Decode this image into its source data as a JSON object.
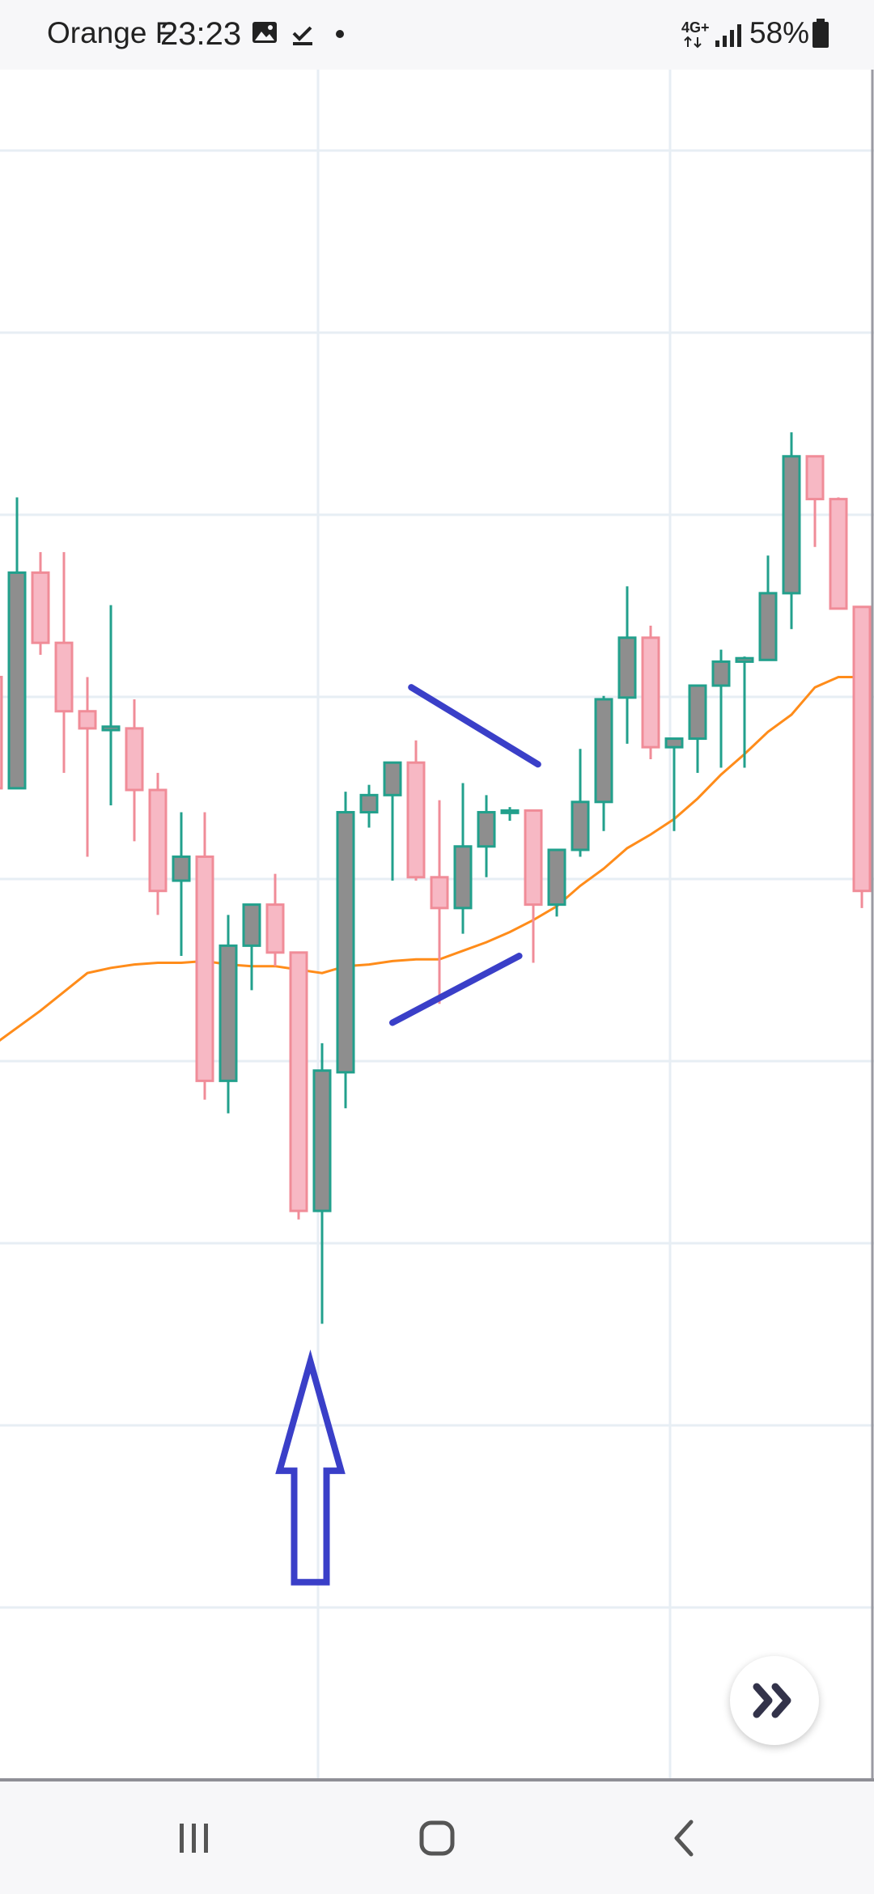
{
  "status_bar": {
    "carrier": "Orange F",
    "time": "23:23",
    "network": "4G+",
    "battery": "58%",
    "icons": [
      "gallery-icon",
      "download-done-icon",
      "dot-icon",
      "network-4g-icon",
      "signal-icon",
      "battery-icon"
    ]
  },
  "chart_data": {
    "type": "candlestick",
    "title": "",
    "xlabel": "",
    "ylabel": "",
    "price_units": "relative price (no axis labels visible)",
    "ylim": [
      0,
      100
    ],
    "grid": true,
    "up_color": "#22a08c",
    "down_color": "#f08c98",
    "up_body_color": "#8e8e8e",
    "down_body_color": "#f7b8c4",
    "ma_color": "#ff8c1a",
    "candles": [
      {
        "o": 64.5,
        "h": 64.5,
        "l": 58.0,
        "c": 58.0
      },
      {
        "o": 58.0,
        "h": 75.0,
        "l": 58.0,
        "c": 70.6
      },
      {
        "o": 70.6,
        "h": 71.8,
        "l": 65.8,
        "c": 66.5
      },
      {
        "o": 66.5,
        "h": 71.8,
        "l": 58.9,
        "c": 62.5
      },
      {
        "o": 62.5,
        "h": 64.5,
        "l": 54.0,
        "c": 61.5
      },
      {
        "o": 61.4,
        "h": 68.7,
        "l": 57.0,
        "c": 61.6
      },
      {
        "o": 61.5,
        "h": 63.2,
        "l": 54.9,
        "c": 57.9
      },
      {
        "o": 57.9,
        "h": 58.9,
        "l": 50.6,
        "c": 52.0
      },
      {
        "o": 52.6,
        "h": 56.6,
        "l": 48.2,
        "c": 54.0
      },
      {
        "o": 54.0,
        "h": 56.6,
        "l": 39.8,
        "c": 40.9
      },
      {
        "o": 40.9,
        "h": 50.6,
        "l": 39.0,
        "c": 48.8
      },
      {
        "o": 48.8,
        "h": 51.2,
        "l": 46.2,
        "c": 51.2
      },
      {
        "o": 51.2,
        "h": 53.0,
        "l": 47.6,
        "c": 48.4
      },
      {
        "o": 48.4,
        "h": 48.4,
        "l": 32.8,
        "c": 33.3
      },
      {
        "o": 33.3,
        "h": 43.1,
        "l": 26.7,
        "c": 41.5
      },
      {
        "o": 41.4,
        "h": 57.8,
        "l": 39.3,
        "c": 56.6
      },
      {
        "o": 56.6,
        "h": 58.2,
        "l": 55.7,
        "c": 57.6
      },
      {
        "o": 57.6,
        "h": 59.5,
        "l": 52.6,
        "c": 59.5
      },
      {
        "o": 59.5,
        "h": 60.8,
        "l": 52.6,
        "c": 52.8
      },
      {
        "o": 52.8,
        "h": 57.3,
        "l": 45.4,
        "c": 51.0
      },
      {
        "o": 51.0,
        "h": 58.3,
        "l": 49.5,
        "c": 54.6
      },
      {
        "o": 54.6,
        "h": 57.6,
        "l": 52.8,
        "c": 56.6
      },
      {
        "o": 56.6,
        "h": 56.9,
        "l": 56.1,
        "c": 56.7
      },
      {
        "o": 56.7,
        "h": 56.7,
        "l": 47.8,
        "c": 51.2
      },
      {
        "o": 51.2,
        "h": 54.4,
        "l": 50.5,
        "c": 54.4
      },
      {
        "o": 54.4,
        "h": 60.3,
        "l": 54.0,
        "c": 57.2
      },
      {
        "o": 57.2,
        "h": 63.4,
        "l": 55.5,
        "c": 63.2
      },
      {
        "o": 63.3,
        "h": 69.8,
        "l": 60.6,
        "c": 66.8
      },
      {
        "o": 66.8,
        "h": 67.5,
        "l": 59.7,
        "c": 60.4
      },
      {
        "o": 60.4,
        "h": 60.6,
        "l": 55.5,
        "c": 60.9
      },
      {
        "o": 60.9,
        "h": 63.5,
        "l": 58.9,
        "c": 64.0
      },
      {
        "o": 64.0,
        "h": 66.1,
        "l": 59.2,
        "c": 65.4
      },
      {
        "o": 65.4,
        "h": 65.7,
        "l": 59.2,
        "c": 65.6
      },
      {
        "o": 65.5,
        "h": 71.6,
        "l": 66.0,
        "c": 69.4
      },
      {
        "o": 69.4,
        "h": 78.8,
        "l": 67.3,
        "c": 77.4
      },
      {
        "o": 77.4,
        "h": 77.4,
        "l": 72.1,
        "c": 74.9
      },
      {
        "o": 74.9,
        "h": 75.0,
        "l": 68.5,
        "c": 68.5
      },
      {
        "o": 68.6,
        "h": 68.6,
        "l": 51.0,
        "c": 52.0
      }
    ],
    "moving_average": [
      43.0,
      44.0,
      45.0,
      46.1,
      47.2,
      47.5,
      47.7,
      47.8,
      47.8,
      47.9,
      47.7,
      47.6,
      47.6,
      47.4,
      47.2,
      47.6,
      47.7,
      47.9,
      48.0,
      48.0,
      48.5,
      49.0,
      49.6,
      50.3,
      51.1,
      52.3,
      53.3,
      54.5,
      55.3,
      56.2,
      57.4,
      58.8,
      60.0,
      61.3,
      62.3,
      63.9,
      64.5,
      64.5
    ],
    "annotations": [
      {
        "type": "trendline",
        "from": [
          17.8,
          63.9
        ],
        "to": [
          23.2,
          59.4
        ]
      },
      {
        "type": "trendline",
        "from": [
          17.0,
          44.3
        ],
        "to": [
          22.4,
          48.2
        ]
      },
      {
        "type": "arrow-up",
        "x": 13.5,
        "tip": 24.5,
        "base": 11.6
      }
    ]
  },
  "controls": {
    "scroll_button_icon": "double-chevron-right-icon"
  },
  "nav_bar": {
    "icons": [
      "recent-apps-icon",
      "home-icon",
      "back-icon"
    ]
  }
}
